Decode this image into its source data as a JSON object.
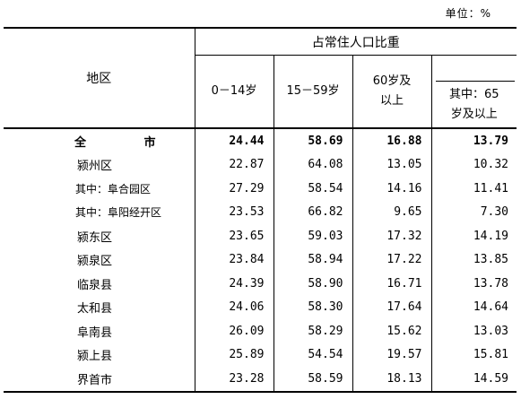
{
  "unit_label": "单位：%",
  "header": {
    "region": "地区",
    "group": "占常住人口比重",
    "columns": [
      "0－14岁",
      "15－59岁",
      "60岁及以上",
      "其中：65岁及以上"
    ],
    "col3_line1": "60岁及",
    "col3_line2": "以上",
    "col4_line1": "其中：65",
    "col4_line2": "岁及以上"
  },
  "rows": [
    {
      "name": "全  市",
      "v": [
        "24.44",
        "58.69",
        "16.88",
        "13.79"
      ]
    },
    {
      "name": "颍州区",
      "v": [
        "22.87",
        "64.08",
        "13.05",
        "10.32"
      ]
    },
    {
      "name": "其中：阜合园区",
      "v": [
        "27.29",
        "58.54",
        "14.16",
        "11.41"
      ]
    },
    {
      "name": "其中：阜阳经开区",
      "v": [
        "23.53",
        "66.82",
        "9.65",
        "7.30"
      ]
    },
    {
      "name": "颍东区",
      "v": [
        "23.65",
        "59.03",
        "17.32",
        "14.19"
      ]
    },
    {
      "name": "颍泉区",
      "v": [
        "23.84",
        "58.94",
        "17.22",
        "13.85"
      ]
    },
    {
      "name": "临泉县",
      "v": [
        "24.39",
        "58.90",
        "16.71",
        "13.78"
      ]
    },
    {
      "name": "太和县",
      "v": [
        "24.06",
        "58.30",
        "17.64",
        "14.64"
      ]
    },
    {
      "name": "阜南县",
      "v": [
        "26.09",
        "58.29",
        "15.62",
        "13.03"
      ]
    },
    {
      "name": "颍上县",
      "v": [
        "25.89",
        "54.54",
        "19.57",
        "15.81"
      ]
    },
    {
      "name": "界首市",
      "v": [
        "23.28",
        "58.59",
        "18.13",
        "14.59"
      ]
    }
  ]
}
